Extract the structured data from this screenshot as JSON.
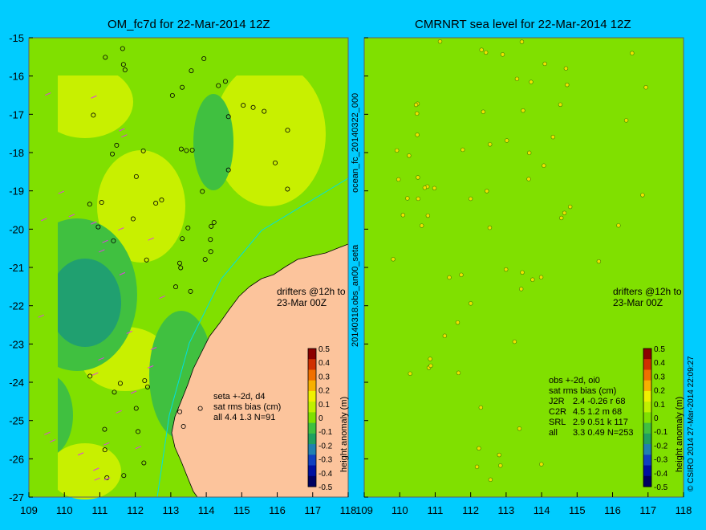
{
  "left_panel": {
    "title": "OM_fc7d for 22-Mar-2014 12Z",
    "drifters_line1": "drifters @12h to",
    "drifters_line2": "23-Mar 00Z",
    "stats_line1": "seta +-2d, d4",
    "stats_line2": "sat rms bias (cm)",
    "stats_line3": "all 4.4 1.3 N=91"
  },
  "right_panel": {
    "title": "CMRNRT sea level  for 22-Mar-2014 12Z",
    "drifters_line1": "drifters @12h to",
    "drifters_line2": "23-Mar 00Z",
    "stats_line1": "obs +-2d, oi0",
    "stats_line2": "sat rms bias (cm)",
    "stats_rows": [
      {
        "name": "J2R",
        "text": "2.4 -0.26 r 68"
      },
      {
        "name": "C2R",
        "text": "4.5  1.2 m 68"
      },
      {
        "name": "SRL",
        "text": "2.9 0.51 k 117"
      },
      {
        "name": "all",
        "text": "3.3 0.49 N=253"
      }
    ]
  },
  "center_label_top": "ocean_fc_20140322_000",
  "center_label_bottom": "20140318.obs_an00_seta",
  "copyright_label": "© CSIRO 2014   27-Mar-2014 22:09:27",
  "y_ticks": [
    "-15",
    "-16",
    "-17",
    "-18",
    "-19",
    "-20",
    "-21",
    "-22",
    "-23",
    "-24",
    "-25",
    "-26",
    "-27"
  ],
  "x_ticks": [
    "109",
    "110",
    "111",
    "112",
    "113",
    "114",
    "115",
    "116",
    "117",
    "118"
  ],
  "colorbar": {
    "label": "height anomaly (m)",
    "ticks": [
      "0.5",
      "0.4",
      "0.3",
      "0.2",
      "0.1",
      "0",
      "-0.1",
      "-0.2",
      "-0.3",
      "-0.4",
      "-0.5"
    ],
    "colors": [
      "#8b0000",
      "#d03000",
      "#f07000",
      "#f8b000",
      "#f0f000",
      "#c0f000",
      "#80e000",
      "#40c040",
      "#20a060",
      "#2080b0",
      "#1040c0",
      "#0010a0",
      "#000060"
    ]
  },
  "colors": {
    "background": "#00ccff",
    "land": "#fcc49c",
    "field_base": "#80e000",
    "field_high": "#c8f000",
    "field_low": "#40c040",
    "field_lowest": "#20a070",
    "drifter": "#e040e0",
    "track": "#00e0e0"
  }
}
